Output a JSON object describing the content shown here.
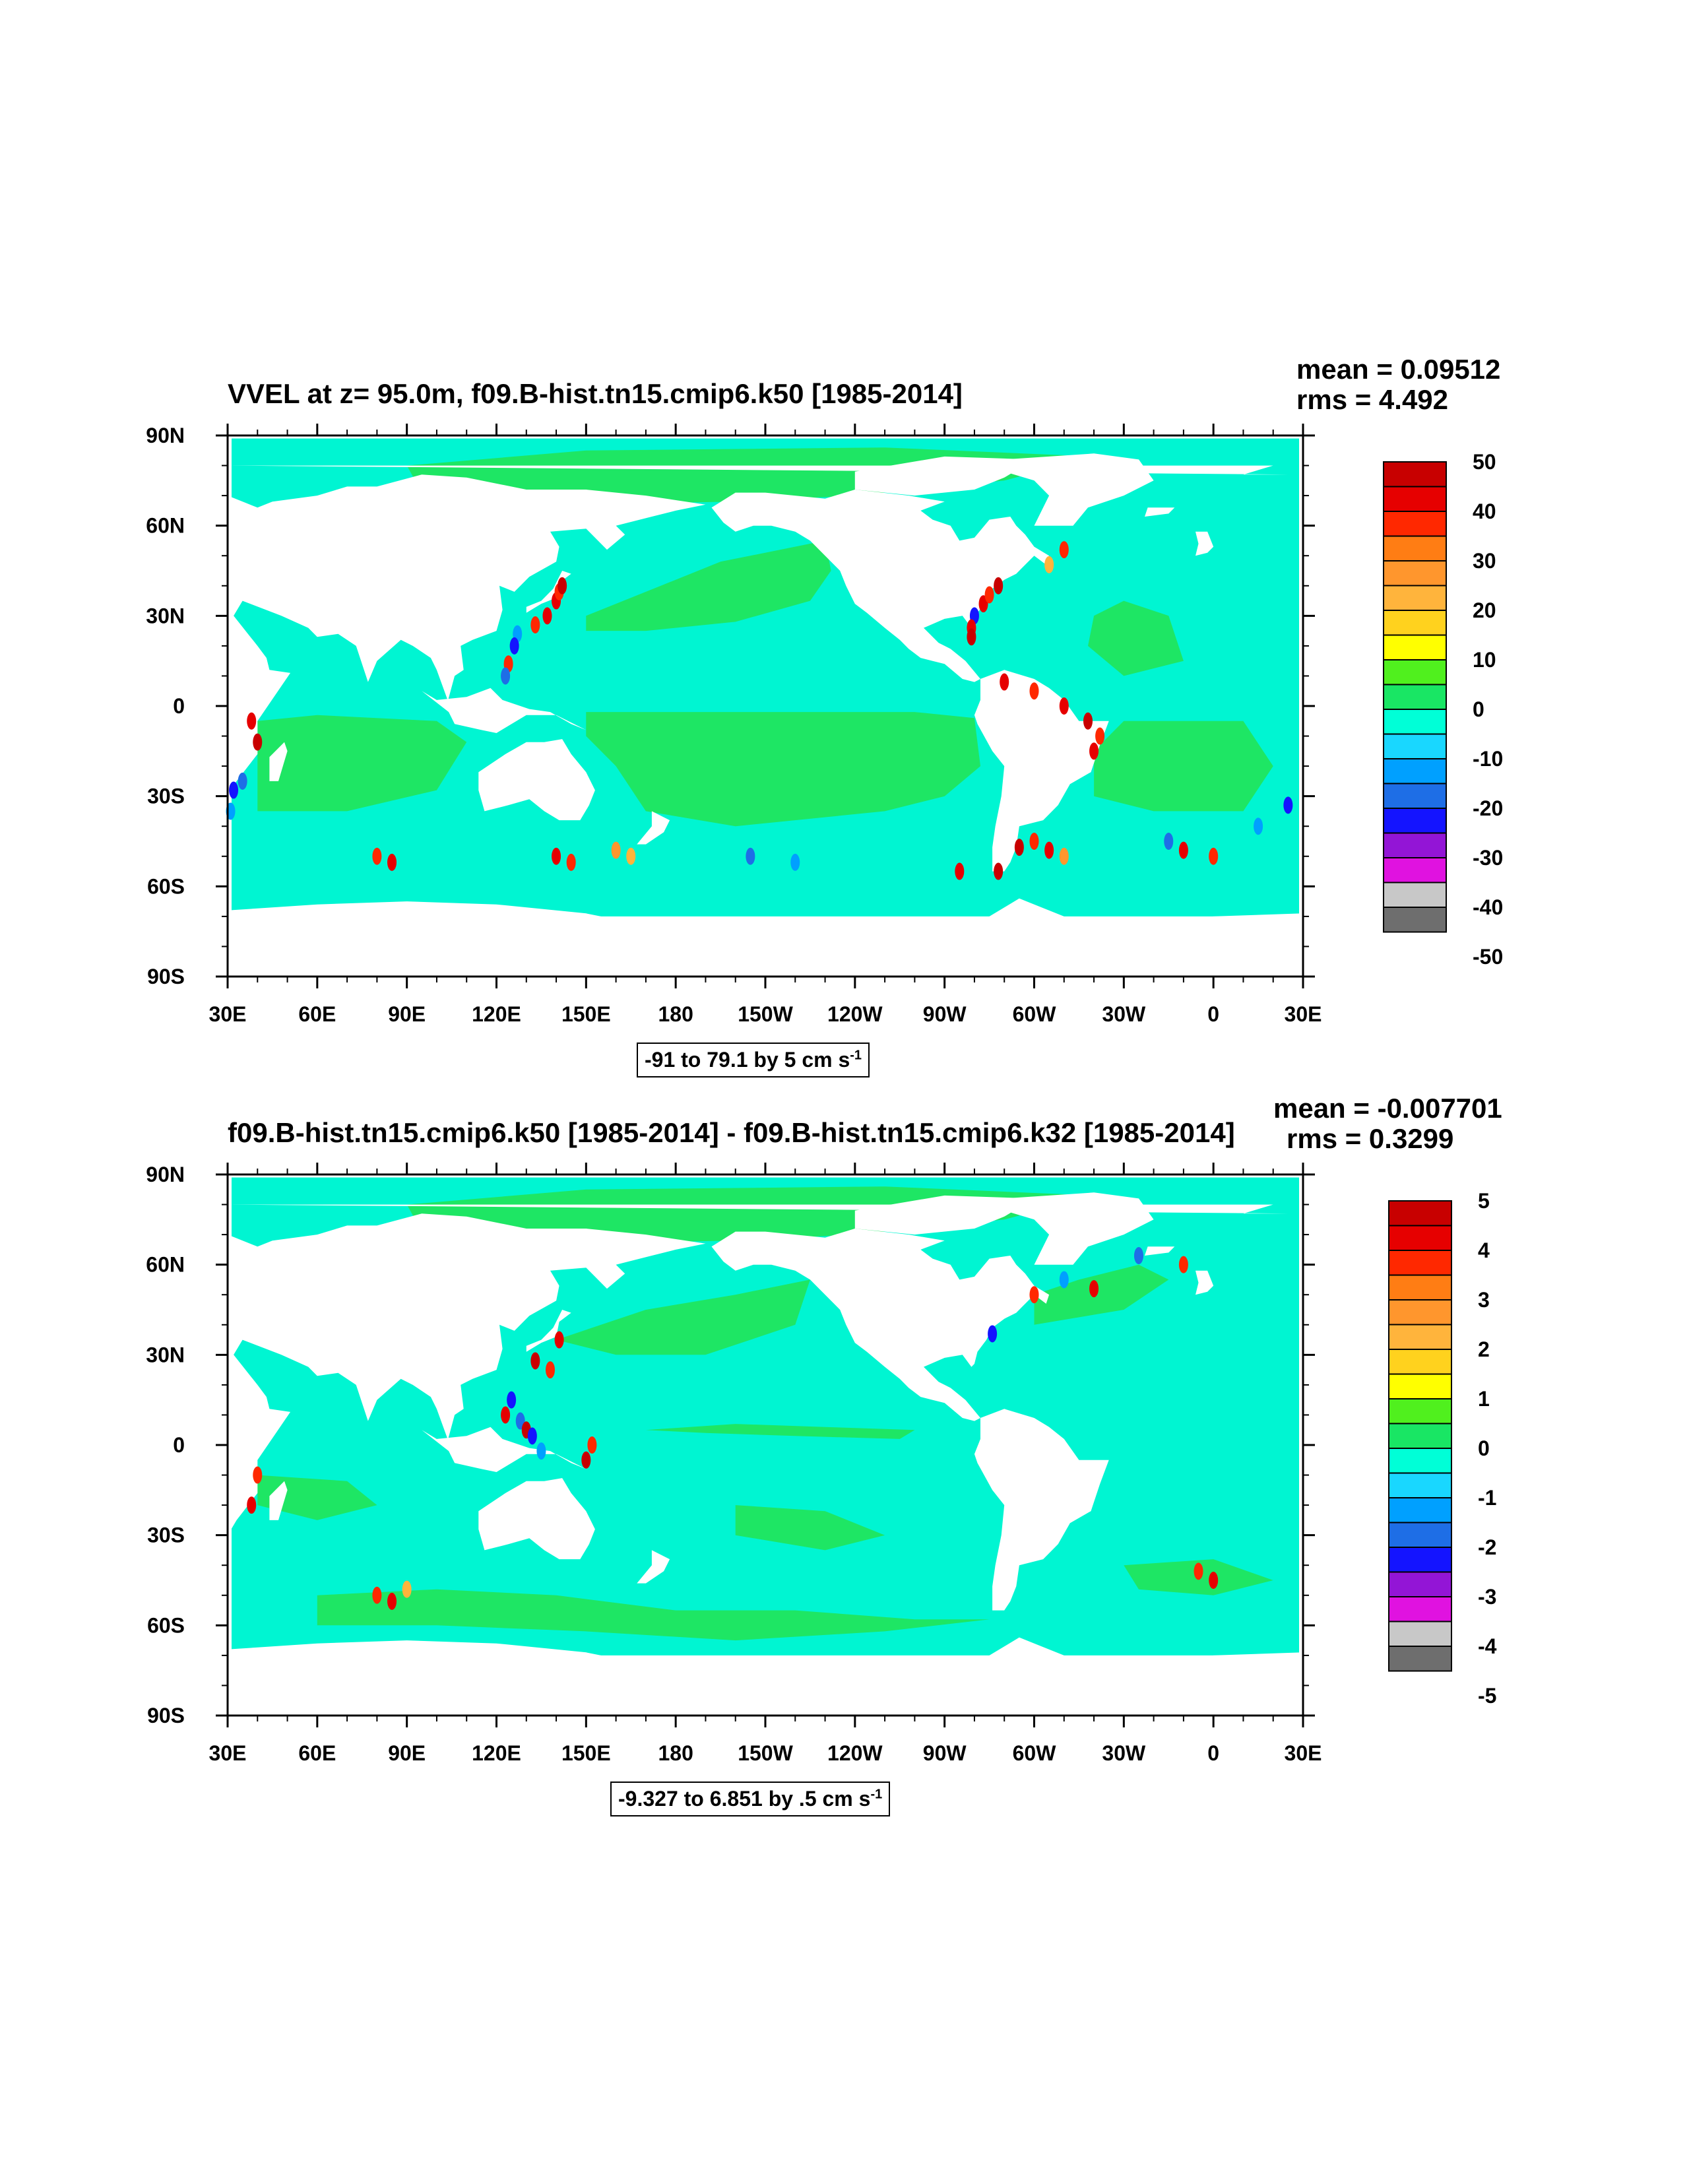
{
  "palette": [
    "#6e6e6e",
    "#c8c8c8",
    "#e012e0",
    "#9315d6",
    "#1414ff",
    "#1e6ee6",
    "#00a0ff",
    "#19d7ff",
    "#00ffd7",
    "#19e664",
    "#50f01e",
    "#ffff00",
    "#ffd21e",
    "#ffb43c",
    "#ff962d",
    "#ff7d14",
    "#ff2800",
    "#e60000",
    "#c80000"
  ],
  "colors": {
    "land": "#ffffff",
    "ocean_base": "#00f5d2",
    "positive": "#1ee664"
  },
  "map": {
    "lon_labels": [
      "30E",
      "60E",
      "90E",
      "120E",
      "150E",
      "180",
      "150W",
      "120W",
      "90W",
      "60W",
      "30W",
      "0",
      "30E"
    ],
    "lat_labels": [
      "90N",
      "60N",
      "30N",
      "0",
      "30S",
      "60S",
      "90S"
    ]
  },
  "panels": [
    {
      "title": "VVEL at z=  95.0m, f09.B-hist.tn15.cmip6.k50 [1985-2014]",
      "mean_text": "mean = 0.09512",
      "rms_text": "rms = 4.492",
      "range_text": "-91 to 79.1 by 5 cm s",
      "range_sup": "-1",
      "colorbar_labels": [
        "50",
        "40",
        "30",
        "20",
        "10",
        "0",
        "-10",
        "-20",
        "-30",
        "-40",
        "-50"
      ]
    },
    {
      "title": "f09.B-hist.tn15.cmip6.k50 [1985-2014] - f09.B-hist.tn15.cmip6.k32 [1985-2014]",
      "mean_text": "mean = -0.007701",
      "rms_text": "rms = 0.3299",
      "range_text": "-9.327 to 6.851 by .5 cm s",
      "range_sup": "-1",
      "colorbar_labels": [
        "5",
        "4",
        "3",
        "2",
        "1",
        "0",
        "-1",
        "-2",
        "-3",
        "-4",
        "-5"
      ]
    }
  ]
}
